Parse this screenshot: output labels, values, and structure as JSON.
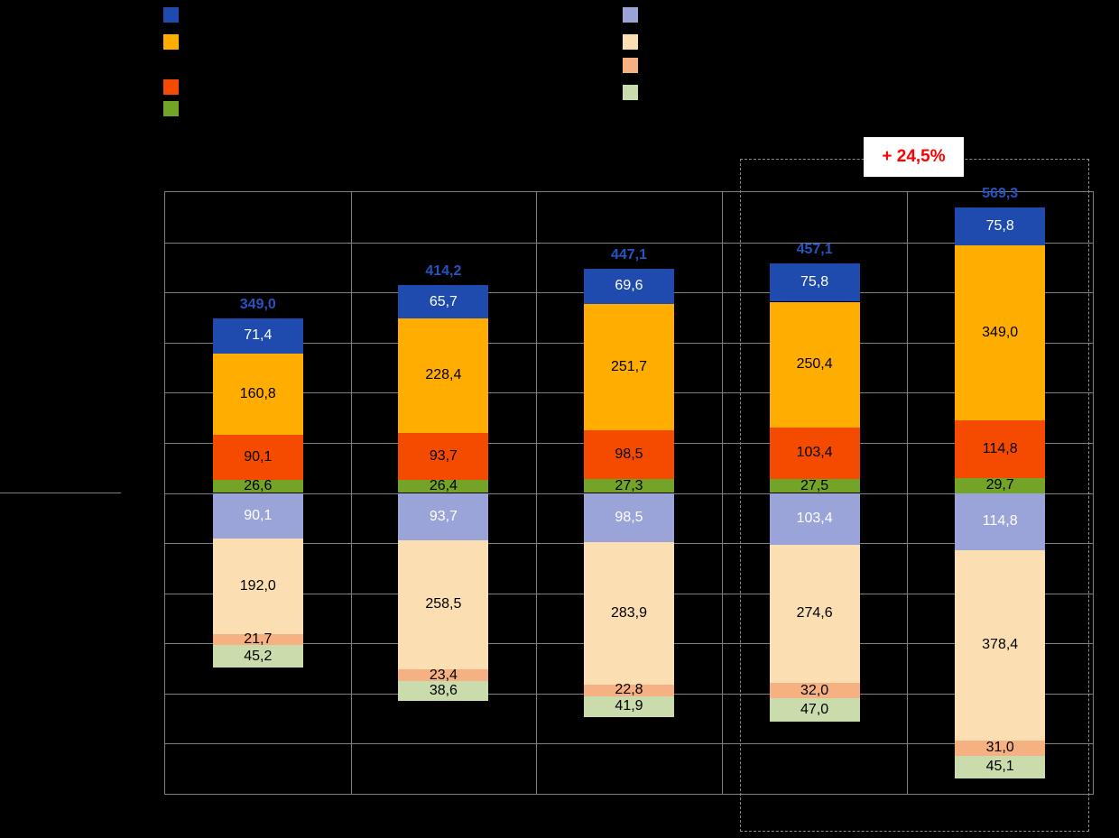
{
  "style": {
    "background": "#000000",
    "grid_color": "#7F7F7F",
    "highlight_border_color": "#8C8C8C"
  },
  "legend": {
    "left_swatches": [
      {
        "name": "legend-swatch-dark-blue",
        "color": "#1E4BAD"
      },
      {
        "name": "legend-swatch-orange",
        "color": "#FFAD00"
      },
      {
        "name": "legend-swatch-red-orange",
        "color": "#F54B00"
      },
      {
        "name": "legend-swatch-green",
        "color": "#73A428"
      }
    ],
    "right_swatches": [
      {
        "name": "legend-swatch-lavender",
        "color": "#9BA4D8"
      },
      {
        "name": "legend-swatch-cream",
        "color": "#FBDFB2"
      },
      {
        "name": "legend-swatch-salmon",
        "color": "#F6B183"
      },
      {
        "name": "legend-swatch-light-green",
        "color": "#CADCAC"
      }
    ]
  },
  "chart_data": {
    "type": "bar",
    "subtype": "diverging-stacked",
    "decimal_separator": ",",
    "axis": {
      "ymin": -600,
      "ymax": 600,
      "grid_step": 100,
      "grid": true
    },
    "groups_count": 5,
    "group_totals": {
      "color": "#2554C0",
      "values": [
        349.0,
        414.2,
        447.1,
        457.1,
        569.3
      ]
    },
    "upper_series": [
      {
        "name": "upper-dark-blue",
        "color": "#1E4BAD",
        "label_color": "#FFFFFF",
        "values": [
          71.4,
          65.7,
          69.6,
          75.8,
          75.8
        ]
      },
      {
        "name": "upper-orange",
        "color": "#FFAD00",
        "label_color": "#000000",
        "values": [
          160.8,
          228.4,
          251.7,
          250.4,
          349.0
        ]
      },
      {
        "name": "upper-red-orange",
        "color": "#F54B00",
        "label_color": "#000000",
        "values": [
          90.1,
          93.7,
          98.5,
          103.4,
          114.8
        ]
      },
      {
        "name": "upper-green",
        "color": "#73A428",
        "label_color": "#000000",
        "values": [
          26.6,
          26.4,
          27.3,
          27.5,
          29.7
        ]
      }
    ],
    "lower_series": [
      {
        "name": "lower-lavender",
        "color": "#9BA4D8",
        "label_color": "#FFFFFF",
        "values": [
          90.1,
          93.7,
          98.5,
          103.4,
          114.8
        ]
      },
      {
        "name": "lower-cream",
        "color": "#FBDFB2",
        "label_color": "#000000",
        "values": [
          192.0,
          258.5,
          283.9,
          274.6,
          378.4
        ]
      },
      {
        "name": "lower-salmon",
        "color": "#F6B183",
        "label_color": "#000000",
        "values": [
          21.7,
          23.4,
          22.8,
          32.0,
          31.0
        ]
      },
      {
        "name": "lower-light-green",
        "color": "#CADCAC",
        "label_color": "#000000",
        "values": [
          45.2,
          38.6,
          41.9,
          47.0,
          45.1
        ]
      }
    ],
    "highlighted_group_indexes": [
      3,
      4
    ],
    "annotation": {
      "label": "+ 24,5%",
      "text_color": "#FF0000",
      "background": "#FFFFFF"
    }
  }
}
